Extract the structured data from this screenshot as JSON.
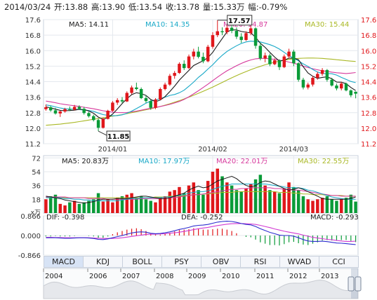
{
  "info_bar": {
    "date": "2014/03/24",
    "open": "开:13.88",
    "high": "高:13.90",
    "low": "低:13.54",
    "close": "收:13.78",
    "volume": "量:15.33万",
    "change": "幅:-0.79%"
  },
  "tabs": [
    "MACD",
    "KDJ",
    "BOLL",
    "PSY",
    "OBV",
    "RSI",
    "WVAD",
    "CCI"
  ],
  "active_tab": "MACD",
  "colors": {
    "up": "#e0171b",
    "down": "#0a9b38",
    "ma5": "#1a1a1a",
    "ma10": "#17a8c7",
    "ma20": "#d6389c",
    "ma30": "#a9b824",
    "price_axis_text": "#e0171b",
    "dif": "#2c2ccf",
    "dea": "#d23ad2"
  },
  "chart_data": [
    {
      "type": "candlestick",
      "title": "",
      "legend": [
        {
          "name": "MA5",
          "value": "MA5: 14.11"
        },
        {
          "name": "MA10",
          "value": "MA10: 14.35"
        },
        {
          "name": "MA20",
          "value": "MA20: 14.87"
        },
        {
          "name": "MA30",
          "value": "MA30: 15.44"
        }
      ],
      "x_tick_labels": [
        "2014/01",
        "2014/02",
        "2014/03"
      ],
      "y_tick_labels": [
        "17.6",
        "16.8",
        "16.0",
        "15.2",
        "14.4",
        "13.6",
        "12.8",
        "12.0",
        "11.2"
      ],
      "ylim": [
        11.2,
        17.6
      ],
      "annotations": [
        {
          "label": "17.57",
          "type": "high"
        },
        {
          "label": "11.85",
          "type": "low"
        }
      ],
      "candles": [
        [
          12.98,
          13.22,
          12.9,
          13.08
        ],
        [
          13.08,
          13.15,
          12.85,
          12.92
        ],
        [
          12.92,
          13.05,
          12.7,
          12.76
        ],
        [
          12.76,
          12.9,
          12.58,
          12.86
        ],
        [
          12.86,
          13.05,
          12.8,
          12.98
        ],
        [
          12.98,
          13.12,
          12.88,
          12.95
        ],
        [
          12.95,
          13.2,
          12.92,
          13.1
        ],
        [
          13.1,
          13.18,
          12.95,
          13.0
        ],
        [
          13.0,
          13.1,
          12.7,
          12.78
        ],
        [
          12.78,
          12.85,
          12.55,
          12.62
        ],
        [
          12.62,
          12.7,
          12.35,
          12.42
        ],
        [
          12.42,
          12.5,
          11.85,
          12.02
        ],
        [
          12.02,
          12.55,
          11.98,
          12.48
        ],
        [
          12.48,
          12.95,
          12.45,
          12.9
        ],
        [
          12.9,
          13.4,
          12.85,
          13.32
        ],
        [
          13.32,
          13.55,
          13.2,
          13.45
        ],
        [
          13.45,
          13.6,
          13.3,
          13.38
        ],
        [
          13.38,
          13.9,
          13.35,
          13.82
        ],
        [
          13.82,
          14.2,
          13.75,
          14.1
        ],
        [
          14.1,
          14.35,
          13.95,
          14.02
        ],
        [
          14.02,
          14.1,
          13.5,
          13.55
        ],
        [
          13.55,
          13.7,
          13.3,
          13.4
        ],
        [
          13.4,
          13.45,
          12.95,
          13.05
        ],
        [
          13.05,
          13.55,
          12.98,
          13.48
        ],
        [
          13.48,
          14.1,
          13.45,
          14.02
        ],
        [
          14.02,
          14.35,
          13.95,
          14.25
        ],
        [
          14.25,
          14.8,
          14.18,
          14.7
        ],
        [
          14.7,
          14.95,
          14.55,
          14.85
        ],
        [
          14.85,
          15.4,
          14.8,
          15.32
        ],
        [
          15.32,
          15.5,
          15.0,
          15.1
        ],
        [
          15.1,
          15.8,
          15.05,
          15.7
        ],
        [
          15.7,
          16.1,
          15.55,
          15.95
        ],
        [
          15.95,
          16.2,
          15.6,
          15.68
        ],
        [
          15.68,
          15.9,
          15.35,
          15.45
        ],
        [
          15.45,
          16.3,
          15.4,
          16.2
        ],
        [
          16.2,
          16.95,
          16.1,
          16.8
        ],
        [
          16.8,
          17.57,
          16.7,
          17.0
        ],
        [
          17.0,
          17.2,
          16.8,
          16.95
        ],
        [
          16.95,
          17.3,
          16.85,
          17.18
        ],
        [
          17.18,
          17.4,
          16.9,
          17.02
        ],
        [
          17.02,
          17.2,
          16.6,
          16.72
        ],
        [
          16.72,
          16.9,
          16.4,
          16.55
        ],
        [
          16.55,
          17.0,
          16.5,
          16.9
        ],
        [
          16.9,
          17.3,
          16.8,
          17.15
        ],
        [
          17.15,
          17.2,
          16.1,
          16.25
        ],
        [
          16.25,
          16.4,
          15.5,
          15.6
        ],
        [
          15.6,
          15.9,
          15.4,
          15.75
        ],
        [
          15.75,
          15.85,
          15.2,
          15.3
        ],
        [
          15.3,
          15.6,
          15.25,
          15.5
        ],
        [
          15.5,
          15.55,
          15.0,
          15.15
        ],
        [
          15.15,
          15.8,
          15.1,
          15.7
        ],
        [
          15.7,
          16.1,
          15.6,
          15.95
        ],
        [
          15.95,
          16.05,
          15.2,
          15.35
        ],
        [
          15.35,
          15.4,
          14.4,
          14.5
        ],
        [
          14.5,
          14.6,
          14.0,
          14.1
        ],
        [
          14.1,
          14.35,
          14.0,
          14.25
        ],
        [
          14.25,
          14.7,
          14.15,
          14.6
        ],
        [
          14.6,
          14.9,
          14.5,
          14.8
        ],
        [
          14.8,
          15.1,
          14.7,
          15.0
        ],
        [
          15.0,
          15.05,
          14.4,
          14.5
        ],
        [
          14.5,
          14.6,
          14.15,
          14.2
        ],
        [
          14.2,
          14.3,
          13.95,
          14.05
        ],
        [
          14.05,
          14.4,
          13.95,
          14.3
        ],
        [
          14.3,
          14.35,
          13.9,
          13.95
        ],
        [
          13.95,
          14.0,
          13.6,
          13.7
        ],
        [
          13.88,
          13.9,
          13.54,
          13.78
        ]
      ],
      "ma5": [
        13.1,
        13.05,
        12.98,
        12.92,
        12.9,
        12.91,
        12.93,
        12.97,
        12.96,
        12.89,
        12.77,
        12.57,
        12.46,
        12.54,
        12.73,
        12.99,
        13.27,
        13.52,
        13.73,
        13.83,
        13.78,
        13.69,
        13.48,
        13.37,
        13.45,
        13.63,
        13.89,
        14.17,
        14.48,
        14.73,
        14.98,
        15.23,
        15.36,
        15.48,
        15.64,
        15.91,
        16.28,
        16.62,
        16.97,
        17.07,
        17.07,
        16.99,
        16.95,
        16.92,
        16.69,
        16.38,
        16.17,
        15.91,
        15.67,
        15.46,
        15.51,
        15.61,
        15.62,
        15.53,
        15.17,
        14.85,
        14.68,
        14.57,
        14.62,
        14.65,
        14.55,
        14.38,
        14.37,
        14.3,
        14.1,
        13.94
      ],
      "ma10": [
        13.2,
        13.16,
        13.1,
        13.04,
        13.0,
        12.99,
        12.98,
        12.96,
        12.94,
        12.91,
        12.87,
        12.78,
        12.7,
        12.66,
        12.64,
        12.65,
        12.69,
        12.77,
        12.88,
        13.01,
        13.15,
        13.29,
        13.4,
        13.46,
        13.53,
        13.6,
        13.69,
        13.74,
        13.83,
        13.96,
        14.16,
        14.38,
        14.62,
        14.82,
        15.05,
        15.27,
        15.53,
        15.76,
        15.96,
        16.11,
        16.25,
        16.37,
        16.45,
        16.49,
        16.47,
        16.45,
        16.38,
        16.31,
        16.21,
        16.08,
        15.91,
        15.74,
        15.61,
        15.47,
        15.32,
        15.19,
        15.03,
        14.9,
        14.82,
        14.82,
        14.81,
        14.74,
        14.62,
        14.52,
        14.41,
        14.35
      ],
      "ma20": [
        13.4,
        13.36,
        13.31,
        13.26,
        13.22,
        13.19,
        13.16,
        13.12,
        13.08,
        13.04,
        13.0,
        12.95,
        12.9,
        12.86,
        12.83,
        12.81,
        12.8,
        12.81,
        12.84,
        12.88,
        12.93,
        12.98,
        13.03,
        13.07,
        13.12,
        13.17,
        13.23,
        13.3,
        13.38,
        13.48,
        13.62,
        13.77,
        13.93,
        14.1,
        14.27,
        14.45,
        14.63,
        14.8,
        14.96,
        15.09,
        15.22,
        15.34,
        15.44,
        15.52,
        15.58,
        15.6,
        15.6,
        15.58,
        15.55,
        15.51,
        15.47,
        15.41,
        15.35,
        15.28,
        15.2,
        15.13,
        15.07,
        15.01,
        14.96,
        14.93,
        14.89,
        14.86,
        14.84,
        14.82,
        14.84,
        14.87
      ],
      "ma30": [
        12.15,
        12.17,
        12.19,
        12.21,
        12.24,
        12.27,
        12.3,
        12.34,
        12.38,
        12.42,
        12.46,
        12.5,
        12.54,
        12.58,
        12.62,
        12.66,
        12.7,
        12.75,
        12.8,
        12.85,
        12.9,
        12.95,
        13.0,
        13.06,
        13.12,
        13.19,
        13.26,
        13.34,
        13.42,
        13.51,
        13.6,
        13.7,
        13.8,
        13.9,
        14.01,
        14.12,
        14.24,
        14.36,
        14.48,
        14.6,
        14.71,
        14.82,
        14.92,
        15.02,
        15.11,
        15.19,
        15.27,
        15.34,
        15.4,
        15.46,
        15.51,
        15.55,
        15.58,
        15.6,
        15.61,
        15.62,
        15.62,
        15.61,
        15.6,
        15.58,
        15.56,
        15.53,
        15.51,
        15.48,
        15.46,
        15.44
      ]
    },
    {
      "type": "bar",
      "title": "",
      "unit_label": "x万",
      "legend": [
        {
          "name": "MA5",
          "value": "MA5: 20.83万"
        },
        {
          "name": "MA10",
          "value": "MA10: 17.97万"
        },
        {
          "name": "MA20",
          "value": "MA20: 22.01万"
        },
        {
          "name": "MA30",
          "value": "MA30: 22.55万"
        }
      ],
      "y_tick_labels": [
        "72",
        "54",
        "36",
        "18"
      ],
      "ylim": [
        0,
        75
      ],
      "volume": [
        18,
        22,
        24,
        12,
        10,
        14,
        16,
        12,
        14,
        16,
        18,
        26,
        15,
        18,
        14,
        20,
        22,
        24,
        26,
        20,
        22,
        18,
        16,
        14,
        20,
        22,
        28,
        30,
        34,
        26,
        36,
        40,
        30,
        24,
        42,
        54,
        58,
        48,
        40,
        36,
        30,
        28,
        32,
        38,
        44,
        50,
        36,
        30,
        28,
        26,
        32,
        40,
        34,
        30,
        22,
        18,
        16,
        18,
        20,
        22,
        18,
        16,
        18,
        20,
        24,
        15
      ],
      "vol_ma5": [
        22,
        21,
        20,
        19,
        17,
        16,
        15,
        14,
        13,
        14,
        15,
        17,
        18,
        18,
        18,
        19,
        19,
        19,
        20,
        21,
        22,
        22,
        21,
        20,
        19,
        19,
        20,
        22,
        24,
        26,
        30,
        33,
        35,
        33,
        34,
        38,
        42,
        44,
        46,
        48,
        45,
        40,
        36,
        34,
        36,
        40,
        42,
        41,
        38,
        35,
        32,
        30,
        31,
        33,
        31,
        28,
        25,
        22,
        19,
        18,
        18,
        18,
        18,
        18,
        19,
        21
      ],
      "vol_ma10": [
        20,
        20,
        20,
        20,
        19,
        19,
        18,
        18,
        17,
        17,
        16,
        16,
        16,
        16,
        16,
        16,
        17,
        18,
        19,
        19,
        20,
        20,
        20,
        20,
        20,
        21,
        21,
        22,
        23,
        24,
        26,
        27,
        28,
        28,
        29,
        31,
        33,
        35,
        36,
        38,
        38,
        38,
        38,
        38,
        38,
        38,
        38,
        37,
        36,
        35,
        34,
        33,
        33,
        33,
        32,
        30,
        29,
        27,
        25,
        23,
        21,
        20,
        19,
        18,
        18,
        18
      ],
      "vol_ma20": [
        21,
        21,
        21,
        21,
        21,
        20,
        20,
        20,
        20,
        19,
        19,
        19,
        19,
        18,
        18,
        18,
        18,
        18,
        18,
        18,
        19,
        19,
        19,
        19,
        19,
        19,
        20,
        20,
        21,
        22,
        23,
        24,
        24,
        25,
        26,
        27,
        28,
        29,
        30,
        31,
        31,
        32,
        32,
        33,
        33,
        33,
        33,
        33,
        32,
        32,
        31,
        31,
        30,
        30,
        29,
        28,
        27,
        26,
        25,
        24,
        23,
        23,
        22,
        22,
        22,
        22
      ],
      "vol_ma30": [
        20,
        20,
        20,
        20,
        20,
        20,
        20,
        20,
        20,
        20,
        20,
        20,
        20,
        20,
        20,
        20,
        20,
        20,
        20,
        20,
        20,
        20,
        20,
        21,
        21,
        21,
        22,
        22,
        22,
        23,
        23,
        24,
        24,
        25,
        25,
        26,
        26,
        27,
        27,
        27,
        28,
        28,
        28,
        28,
        28,
        28,
        28,
        28,
        28,
        27,
        27,
        27,
        26,
        26,
        25,
        25,
        24,
        24,
        24,
        23,
        23,
        23,
        23,
        22,
        22,
        22
      ]
    },
    {
      "type": "line",
      "title": "",
      "legend": [
        {
          "name": "DIF",
          "value": "DIF: -0.398"
        },
        {
          "name": "DEA",
          "value": "DEA: -0.252"
        },
        {
          "name": "MACD",
          "value": "MACD: -0.293"
        }
      ],
      "y_tick_labels": [
        "0.866",
        "0.000",
        "-0.866"
      ],
      "ylim": [
        -0.866,
        0.866
      ],
      "dif": [
        -0.1,
        -0.1,
        -0.1,
        -0.11,
        -0.12,
        -0.12,
        -0.11,
        -0.1,
        -0.1,
        -0.11,
        -0.13,
        -0.17,
        -0.18,
        -0.15,
        -0.1,
        -0.05,
        0.0,
        0.06,
        0.11,
        0.15,
        0.16,
        0.15,
        0.1,
        0.08,
        0.09,
        0.12,
        0.16,
        0.21,
        0.27,
        0.31,
        0.36,
        0.42,
        0.45,
        0.46,
        0.49,
        0.54,
        0.59,
        0.62,
        0.63,
        0.62,
        0.58,
        0.53,
        0.49,
        0.47,
        0.4,
        0.3,
        0.22,
        0.14,
        0.08,
        0.02,
        0.0,
        0.0,
        -0.03,
        -0.1,
        -0.18,
        -0.24,
        -0.26,
        -0.26,
        -0.25,
        -0.27,
        -0.3,
        -0.33,
        -0.34,
        -0.36,
        -0.38,
        -0.4
      ],
      "dea": [
        -0.08,
        -0.08,
        -0.09,
        -0.09,
        -0.1,
        -0.1,
        -0.1,
        -0.1,
        -0.1,
        -0.1,
        -0.11,
        -0.12,
        -0.13,
        -0.13,
        -0.13,
        -0.12,
        -0.1,
        -0.07,
        -0.04,
        -0.01,
        0.02,
        0.05,
        0.06,
        0.06,
        0.07,
        0.08,
        0.1,
        0.12,
        0.15,
        0.18,
        0.22,
        0.26,
        0.3,
        0.33,
        0.36,
        0.4,
        0.44,
        0.47,
        0.5,
        0.52,
        0.53,
        0.53,
        0.52,
        0.51,
        0.49,
        0.45,
        0.4,
        0.35,
        0.29,
        0.24,
        0.19,
        0.15,
        0.11,
        0.07,
        0.02,
        -0.03,
        -0.08,
        -0.11,
        -0.14,
        -0.17,
        -0.19,
        -0.22,
        -0.24,
        -0.26,
        -0.26,
        -0.25
      ],
      "macd": [
        -0.04,
        -0.04,
        -0.02,
        -0.04,
        -0.04,
        -0.04,
        -0.02,
        0.0,
        0.0,
        -0.02,
        -0.04,
        -0.1,
        -0.1,
        -0.04,
        0.06,
        0.14,
        0.2,
        0.26,
        0.3,
        0.32,
        0.28,
        0.2,
        0.08,
        0.04,
        0.04,
        0.08,
        0.12,
        0.18,
        0.24,
        0.26,
        0.28,
        0.32,
        0.3,
        0.26,
        0.26,
        0.28,
        0.3,
        0.3,
        0.26,
        0.2,
        0.1,
        0.0,
        -0.06,
        -0.08,
        -0.18,
        -0.3,
        -0.36,
        -0.42,
        -0.42,
        -0.44,
        -0.38,
        -0.3,
        -0.28,
        -0.34,
        -0.4,
        -0.42,
        -0.36,
        -0.3,
        -0.22,
        -0.2,
        -0.22,
        -0.22,
        -0.2,
        -0.2,
        -0.24,
        -0.29
      ]
    },
    {
      "type": "area",
      "title": "",
      "x_tick_labels": [
        "2004",
        "2006",
        "2007",
        "2008",
        "2009",
        "2010",
        "2011",
        "2012",
        "2013"
      ]
    }
  ]
}
